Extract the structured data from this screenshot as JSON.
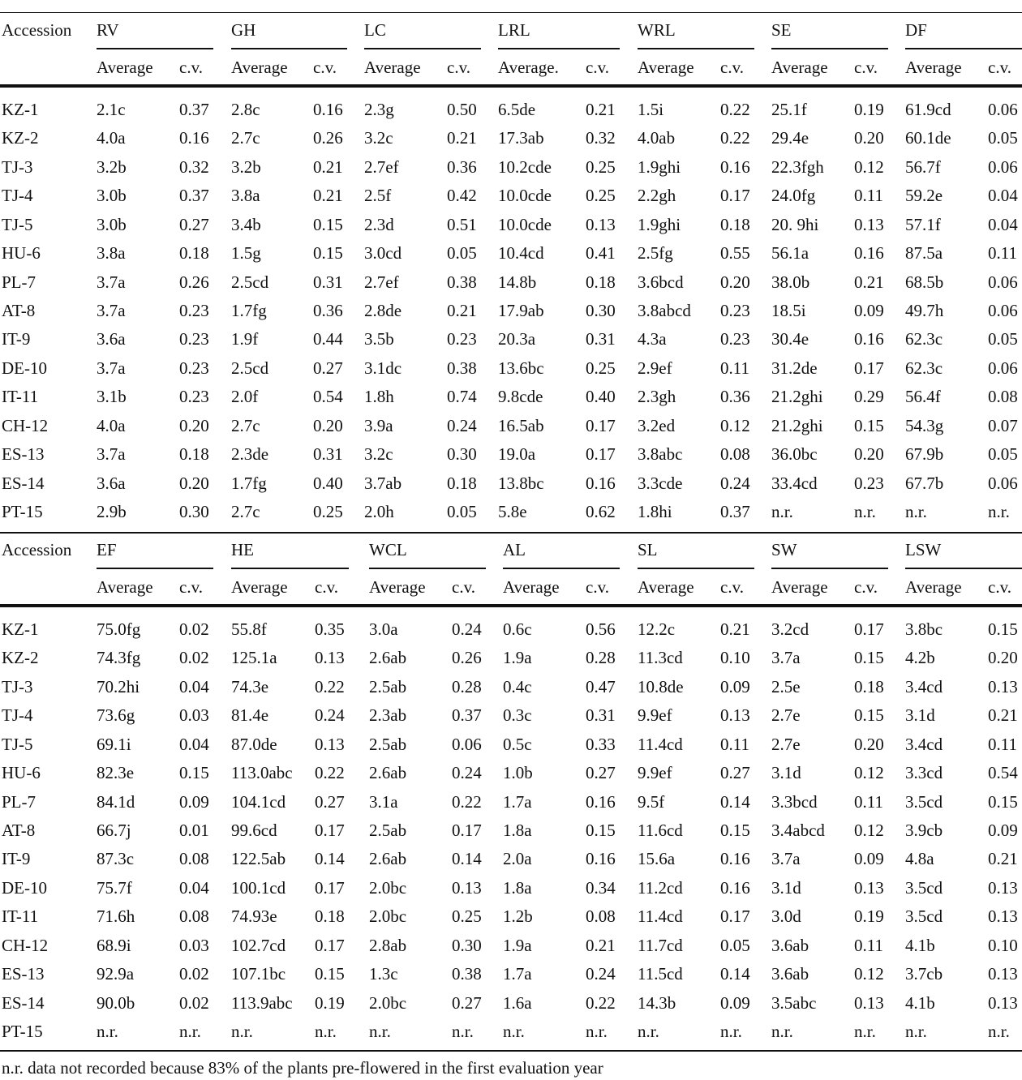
{
  "tables": [
    {
      "header": "Accession",
      "variables": [
        {
          "name": "RV",
          "subheaders": [
            "Average",
            "c.v."
          ]
        },
        {
          "name": "GH",
          "subheaders": [
            "Average",
            "c.v."
          ]
        },
        {
          "name": "LC",
          "subheaders": [
            "Average",
            "c.v."
          ]
        },
        {
          "name": "LRL",
          "subheaders": [
            "Average.",
            "c.v."
          ]
        },
        {
          "name": "WRL",
          "subheaders": [
            "Average",
            "c.v."
          ]
        },
        {
          "name": "SE",
          "subheaders": [
            "Average",
            "c.v."
          ]
        },
        {
          "name": "DF",
          "subheaders": [
            "Average",
            "c.v."
          ]
        }
      ],
      "rows": [
        [
          "KZ-1",
          "2.1c",
          "0.37",
          "2.8c",
          "0.16",
          "2.3g",
          "0.50",
          "6.5de",
          "0.21",
          "1.5i",
          "0.22",
          "25.1f",
          "0.19",
          "61.9cd",
          "0.06"
        ],
        [
          "KZ-2",
          "4.0a",
          "0.16",
          "2.7c",
          "0.26",
          "3.2c",
          "0.21",
          "17.3ab",
          "0.32",
          "4.0ab",
          "0.22",
          "29.4e",
          "0.20",
          "60.1de",
          "0.05"
        ],
        [
          "TJ-3",
          "3.2b",
          "0.32",
          "3.2b",
          "0.21",
          "2.7ef",
          "0.36",
          "10.2cde",
          "0.25",
          "1.9ghi",
          "0.16",
          "22.3fgh",
          "0.12",
          "56.7f",
          "0.06"
        ],
        [
          "TJ-4",
          "3.0b",
          "0.37",
          "3.8a",
          "0.21",
          "2.5f",
          "0.42",
          "10.0cde",
          "0.25",
          "2.2gh",
          "0.17",
          "24.0fg",
          "0.11",
          "59.2e",
          "0.04"
        ],
        [
          "TJ-5",
          "3.0b",
          "0.27",
          "3.4b",
          "0.15",
          "2.3d",
          "0.51",
          "10.0cde",
          "0.13",
          "1.9ghi",
          "0.18",
          "20. 9hi",
          "0.13",
          "57.1f",
          "0.04"
        ],
        [
          "HU-6",
          "3.8a",
          "0.18",
          "1.5g",
          "0.15",
          "3.0cd",
          "0.05",
          "10.4cd",
          "0.41",
          "2.5fg",
          "0.55",
          "56.1a",
          "0.16",
          "87.5a",
          "0.11"
        ],
        [
          "PL-7",
          "3.7a",
          "0.26",
          "2.5cd",
          "0.31",
          "2.7ef",
          "0.38",
          "14.8b",
          "0.18",
          "3.6bcd",
          "0.20",
          "38.0b",
          "0.21",
          "68.5b",
          "0.06"
        ],
        [
          "AT-8",
          "3.7a",
          "0.23",
          "1.7fg",
          "0.36",
          "2.8de",
          "0.21",
          "17.9ab",
          "0.30",
          "3.8abcd",
          "0.23",
          "18.5i",
          "0.09",
          "49.7h",
          "0.06"
        ],
        [
          "IT-9",
          "3.6a",
          "0.23",
          "1.9f",
          "0.44",
          "3.5b",
          "0.23",
          "20.3a",
          "0.31",
          "4.3a",
          "0.23",
          "30.4e",
          "0.16",
          "62.3c",
          "0.05"
        ],
        [
          "DE-10",
          "3.7a",
          "0.23",
          "2.5cd",
          "0.27",
          "3.1dc",
          "0.38",
          "13.6bc",
          "0.25",
          "2.9ef",
          "0.11",
          "31.2de",
          "0.17",
          "62.3c",
          "0.06"
        ],
        [
          "IT-11",
          "3.1b",
          "0.23",
          "2.0f",
          "0.54",
          "1.8h",
          "0.74",
          "9.8cde",
          "0.40",
          "2.3gh",
          "0.36",
          "21.2ghi",
          "0.29",
          "56.4f",
          "0.08"
        ],
        [
          "CH-12",
          "4.0a",
          "0.20",
          "2.7c",
          "0.20",
          "3.9a",
          "0.24",
          "16.5ab",
          "0.17",
          "3.2ed",
          "0.12",
          "21.2ghi",
          "0.15",
          "54.3g",
          "0.07"
        ],
        [
          "ES-13",
          "3.7a",
          "0.18",
          "2.3de",
          "0.31",
          "3.2c",
          "0.30",
          "19.0a",
          "0.17",
          "3.8abc",
          "0.08",
          "36.0bc",
          "0.20",
          "67.9b",
          "0.05"
        ],
        [
          "ES-14",
          "3.6a",
          "0.20",
          "1.7fg",
          "0.40",
          "3.7ab",
          "0.18",
          "13.8bc",
          "0.16",
          "3.3cde",
          "0.24",
          "33.4cd",
          "0.23",
          "67.7b",
          "0.06"
        ],
        [
          "PT-15",
          "2.9b",
          "0.30",
          "2.7c",
          "0.25",
          "2.0h",
          "0.05",
          "5.8e",
          "0.62",
          "1.8hi",
          "0.37",
          "n.r.",
          "n.r.",
          "n.r.",
          "n.r."
        ]
      ]
    },
    {
      "header": "Accession",
      "variables": [
        {
          "name": "EF",
          "subheaders": [
            "Average",
            "c.v."
          ]
        },
        {
          "name": "HE",
          "subheaders": [
            "Average",
            "c.v."
          ]
        },
        {
          "name": "WCL",
          "subheaders": [
            "Average",
            "c.v."
          ]
        },
        {
          "name": "AL",
          "subheaders": [
            "Average",
            "c.v."
          ]
        },
        {
          "name": "SL",
          "subheaders": [
            "Average",
            "c.v."
          ]
        },
        {
          "name": "SW",
          "subheaders": [
            "Average",
            "c.v."
          ]
        },
        {
          "name": "LSW",
          "subheaders": [
            "Average",
            "c.v."
          ]
        }
      ],
      "rows": [
        [
          "KZ-1",
          "75.0fg",
          "0.02",
          "55.8f",
          "0.35",
          "3.0a",
          "0.24",
          "0.6c",
          "0.56",
          "12.2c",
          "0.21",
          "3.2cd",
          "0.17",
          "3.8bc",
          "0.15"
        ],
        [
          "KZ-2",
          "74.3fg",
          "0.02",
          "125.1a",
          "0.13",
          "2.6ab",
          "0.26",
          "1.9a",
          "0.28",
          "11.3cd",
          "0.10",
          "3.7a",
          "0.15",
          "4.2b",
          "0.20"
        ],
        [
          "TJ-3",
          "70.2hi",
          "0.04",
          "74.3e",
          "0.22",
          "2.5ab",
          "0.28",
          "0.4c",
          "0.47",
          "10.8de",
          "0.09",
          "2.5e",
          "0.18",
          "3.4cd",
          "0.13"
        ],
        [
          "TJ-4",
          "73.6g",
          "0.03",
          "81.4e",
          "0.24",
          "2.3ab",
          "0.37",
          "0.3c",
          "0.31",
          "9.9ef",
          "0.13",
          "2.7e",
          "0.15",
          "3.1d",
          "0.21"
        ],
        [
          "TJ-5",
          "69.1i",
          "0.04",
          "87.0de",
          "0.13",
          "2.5ab",
          "0.06",
          "0.5c",
          "0.33",
          "11.4cd",
          "0.11",
          "2.7e",
          "0.20",
          "3.4cd",
          "0.11"
        ],
        [
          "HU-6",
          "82.3e",
          "0.15",
          "113.0abc",
          "0.22",
          "2.6ab",
          "0.24",
          "1.0b",
          "0.27",
          "9.9ef",
          "0.27",
          "3.1d",
          "0.12",
          "3.3cd",
          "0.54"
        ],
        [
          "PL-7",
          "84.1d",
          "0.09",
          "104.1cd",
          "0.27",
          "3.1a",
          "0.22",
          "1.7a",
          "0.16",
          "9.5f",
          "0.14",
          "3.3bcd",
          "0.11",
          "3.5cd",
          "0.15"
        ],
        [
          "AT-8",
          "66.7j",
          "0.01",
          "99.6cd",
          "0.17",
          "2.5ab",
          "0.17",
          "1.8a",
          "0.15",
          "11.6cd",
          "0.15",
          "3.4abcd",
          "0.12",
          "3.9cb",
          "0.09"
        ],
        [
          "IT-9",
          "87.3c",
          "0.08",
          "122.5ab",
          "0.14",
          "2.6ab",
          "0.14",
          "2.0a",
          "0.16",
          "15.6a",
          "0.16",
          "3.7a",
          "0.09",
          "4.8a",
          "0.21"
        ],
        [
          "DE-10",
          "75.7f",
          "0.04",
          "100.1cd",
          "0.17",
          "2.0bc",
          "0.13",
          "1.8a",
          "0.34",
          "11.2cd",
          "0.16",
          "3.1d",
          "0.13",
          "3.5cd",
          "0.13"
        ],
        [
          "IT-11",
          "71.6h",
          "0.08",
          "74.93e",
          "0.18",
          "2.0bc",
          "0.25",
          "1.2b",
          "0.08",
          "11.4cd",
          "0.17",
          "3.0d",
          "0.19",
          "3.5cd",
          "0.13"
        ],
        [
          "CH-12",
          "68.9i",
          "0.03",
          "102.7cd",
          "0.17",
          "2.8ab",
          "0.30",
          "1.9a",
          "0.21",
          "11.7cd",
          "0.05",
          "3.6ab",
          "0.11",
          "4.1b",
          "0.10"
        ],
        [
          "ES-13",
          "92.9a",
          "0.02",
          "107.1bc",
          "0.15",
          "1.3c",
          "0.38",
          "1.7a",
          "0.24",
          "11.5cd",
          "0.14",
          "3.6ab",
          "0.12",
          "3.7cb",
          "0.13"
        ],
        [
          "ES-14",
          "90.0b",
          "0.02",
          "113.9abc",
          "0.19",
          "2.0bc",
          "0.27",
          "1.6a",
          "0.22",
          "14.3b",
          "0.09",
          "3.5abc",
          "0.13",
          "4.1b",
          "0.13"
        ],
        [
          "PT-15",
          "n.r.",
          "n.r.",
          "n.r.",
          "n.r.",
          "n.r.",
          "n.r.",
          "n.r.",
          "n.r.",
          "n.r.",
          "n.r.",
          "n.r.",
          "n.r.",
          "n.r.",
          "n.r."
        ]
      ]
    }
  ],
  "footnote": "n.r. data not recorded because 83% of the plants pre-flowered in the first evaluation year"
}
